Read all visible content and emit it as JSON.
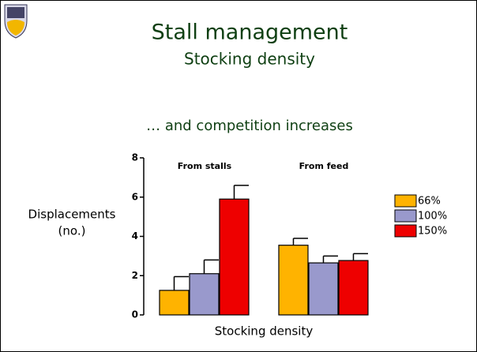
{
  "title": "Stall management",
  "subtitle": "Stocking density",
  "heading": "… and competition increases",
  "chart_data": {
    "type": "bar",
    "categories": [
      "From stalls",
      "From feed"
    ],
    "series": [
      {
        "name": "66%",
        "color": "#ffb300",
        "values": [
          1.25,
          3.55
        ],
        "errors": [
          0.7,
          0.35
        ]
      },
      {
        "name": "100%",
        "color": "#9999cc",
        "values": [
          2.1,
          2.65
        ],
        "errors": [
          0.7,
          0.35
        ]
      },
      {
        "name": "150%",
        "color": "#ee0000",
        "values": [
          5.9,
          2.77
        ],
        "errors": [
          0.7,
          0.35
        ]
      }
    ],
    "ylabel": [
      "Displacements",
      "(no.)"
    ],
    "xlabel": "Stocking density",
    "ylim": [
      0,
      8
    ],
    "yticks": [
      0,
      2,
      4,
      6,
      8
    ]
  }
}
